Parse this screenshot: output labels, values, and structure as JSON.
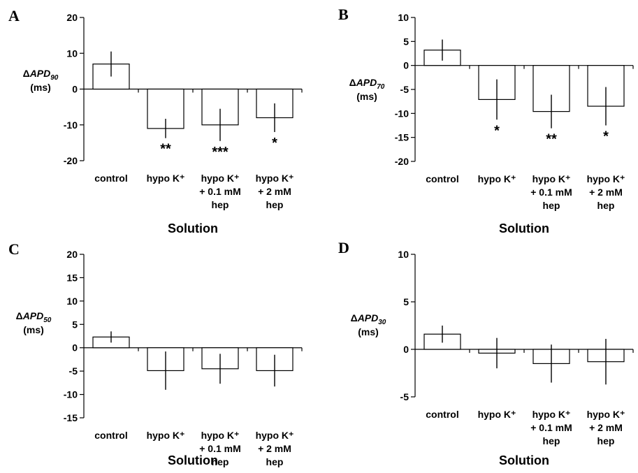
{
  "chart_data": [
    {
      "panel": "A",
      "type": "bar",
      "ylabel": {
        "delta": "Δ",
        "main": "APD",
        "sub": "90",
        "unit": "(ms)"
      },
      "xlabel": "Solution",
      "yticks": [
        "20",
        "10",
        "0",
        "-10",
        "-20"
      ],
      "ylim": [
        -20,
        20
      ],
      "categories": [
        [
          "control"
        ],
        [
          "hypo K⁺"
        ],
        [
          "hypo K⁺",
          "+ 0.1 mM",
          "hep"
        ],
        [
          "hypo K⁺",
          "+ 2 mM",
          "hep"
        ]
      ],
      "values": [
        7,
        -11,
        -10,
        -8
      ],
      "errors": [
        3.5,
        2.7,
        4.5,
        4
      ],
      "significance": [
        "",
        "**",
        "***",
        "*"
      ]
    },
    {
      "panel": "B",
      "type": "bar",
      "ylabel": {
        "delta": "Δ",
        "main": "APD",
        "sub": "70",
        "unit": "(ms)"
      },
      "xlabel": "Solution",
      "yticks": [
        "10",
        "5",
        "0",
        "-5",
        "-10",
        "-15",
        "-20"
      ],
      "ylim": [
        -20,
        10
      ],
      "categories": [
        [
          "control"
        ],
        [
          "hypo K⁺"
        ],
        [
          "hypo K⁺",
          "+ 0.1 mM",
          "hep"
        ],
        [
          "hypo K⁺",
          "+ 2 mM",
          "hep"
        ]
      ],
      "values": [
        3.2,
        -7.1,
        -9.6,
        -8.5
      ],
      "errors": [
        2.2,
        4.2,
        3.5,
        4
      ],
      "significance": [
        "",
        "*",
        "**",
        "*"
      ]
    },
    {
      "panel": "C",
      "type": "bar",
      "ylabel": {
        "delta": "Δ",
        "main": "APD",
        "sub": "50",
        "unit": "(ms)"
      },
      "xlabel": "Solution",
      "yticks": [
        "20",
        "15",
        "10",
        "5",
        "0",
        "-5",
        "-10",
        "-15"
      ],
      "ylim": [
        -15,
        20
      ],
      "categories": [
        [
          "control"
        ],
        [
          "hypo K⁺"
        ],
        [
          "hypo K⁺",
          "+ 0.1 mM",
          "hep"
        ],
        [
          "hypo K⁺",
          "+ 2 mM",
          "hep"
        ]
      ],
      "values": [
        2.3,
        -4.9,
        -4.5,
        -4.9
      ],
      "errors": [
        1.2,
        4.1,
        3.2,
        3.4
      ],
      "significance": [
        "",
        "",
        "",
        ""
      ]
    },
    {
      "panel": "D",
      "type": "bar",
      "ylabel": {
        "delta": "Δ",
        "main": "APD",
        "sub": "30",
        "unit": "(ms)"
      },
      "xlabel": "Solution",
      "yticks": [
        "10",
        "5",
        "0",
        "-5"
      ],
      "ylim": [
        -5,
        10
      ],
      "categories": [
        [
          "control"
        ],
        [
          "hypo K⁺"
        ],
        [
          "hypo K⁺",
          "+ 0.1 mM",
          "hep"
        ],
        [
          "hypo K⁺",
          "+ 2 mM",
          "hep"
        ]
      ],
      "values": [
        1.6,
        -0.4,
        -1.5,
        -1.3
      ],
      "errors": [
        0.9,
        1.6,
        2,
        2.4
      ],
      "significance": [
        "",
        "",
        "",
        ""
      ]
    }
  ]
}
